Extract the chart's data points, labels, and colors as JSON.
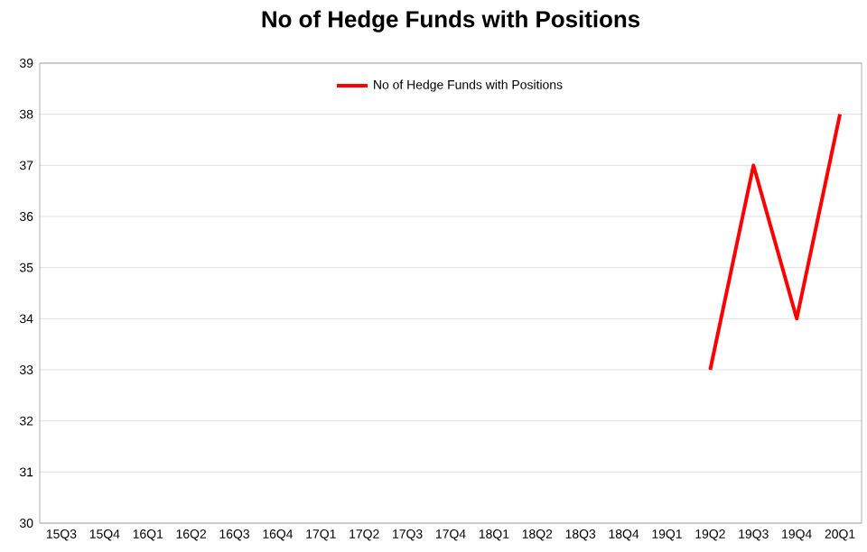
{
  "chart_data": {
    "type": "line",
    "title": "No of Hedge Funds with Positions",
    "categories": [
      "15Q3",
      "15Q4",
      "16Q1",
      "16Q2",
      "16Q3",
      "16Q4",
      "17Q1",
      "17Q2",
      "17Q3",
      "17Q4",
      "18Q1",
      "18Q2",
      "18Q3",
      "18Q4",
      "19Q1",
      "19Q2",
      "19Q3",
      "19Q4",
      "20Q1"
    ],
    "series": [
      {
        "name": "No of Hedge Funds with Positions",
        "color": "#ff0000",
        "values": [
          null,
          null,
          null,
          null,
          null,
          null,
          null,
          null,
          null,
          null,
          null,
          null,
          null,
          null,
          null,
          33,
          37,
          34,
          38
        ]
      }
    ],
    "ylim": [
      30,
      39
    ],
    "yticks": [
      30,
      31,
      32,
      33,
      34,
      35,
      36,
      37,
      38,
      39
    ],
    "grid": "y",
    "legend": "top",
    "marker": "none",
    "line_style": "solid"
  }
}
